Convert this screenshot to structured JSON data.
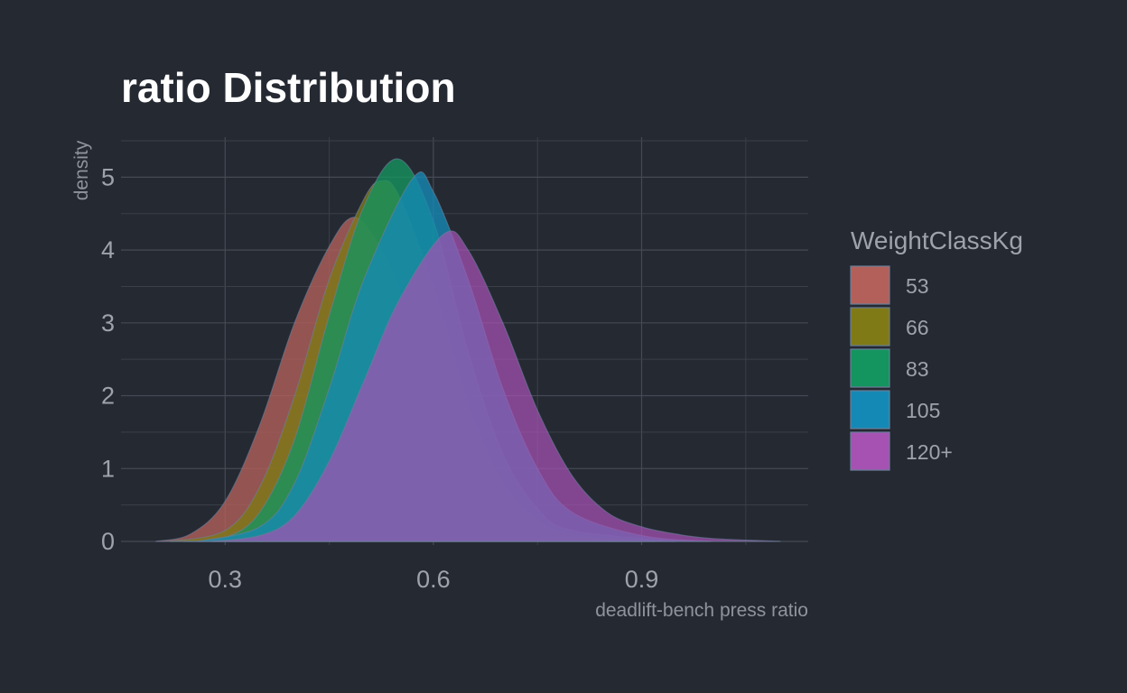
{
  "chart_data": {
    "type": "area",
    "title": "ratio Distribution",
    "xlabel": "deadlift-bench press ratio",
    "ylabel": "density",
    "xlim": [
      0.15,
      1.14
    ],
    "ylim": [
      -0.05,
      5.55
    ],
    "x_ticks": [
      0.3,
      0.6,
      0.9
    ],
    "x_tick_labels": [
      "0.3",
      "0.6",
      "0.9"
    ],
    "y_ticks": [
      0,
      1,
      2,
      3,
      4,
      5
    ],
    "y_tick_labels": [
      "0",
      "1",
      "2",
      "3",
      "4",
      "5"
    ],
    "grid": true,
    "legend_placement": "right",
    "legend_title": "WeightClassKg",
    "series": [
      {
        "name": "53",
        "color": "#b4605a",
        "peak_x": 0.485,
        "peak_density": 4.45,
        "x_min": 0.2,
        "x_max": 0.9,
        "x": [
          0.2,
          0.25,
          0.3,
          0.35,
          0.4,
          0.45,
          0.485,
          0.52,
          0.55,
          0.6,
          0.65,
          0.7,
          0.75,
          0.8,
          0.9
        ],
        "y": [
          0.0,
          0.1,
          0.55,
          1.6,
          3.0,
          4.05,
          4.45,
          4.1,
          3.5,
          2.2,
          1.1,
          0.45,
          0.15,
          0.05,
          0.0
        ]
      },
      {
        "name": "66",
        "color": "#7f7a15",
        "peak_x": 0.525,
        "peak_density": 4.95,
        "x_min": 0.22,
        "x_max": 0.92,
        "x": [
          0.22,
          0.3,
          0.35,
          0.4,
          0.45,
          0.5,
          0.525,
          0.55,
          0.6,
          0.65,
          0.7,
          0.75,
          0.8,
          0.92
        ],
        "y": [
          0.0,
          0.15,
          0.75,
          2.0,
          3.6,
          4.7,
          4.95,
          4.75,
          3.5,
          1.9,
          0.8,
          0.3,
          0.1,
          0.0
        ]
      },
      {
        "name": "83",
        "color": "#14945f",
        "peak_x": 0.55,
        "peak_density": 5.25,
        "x_min": 0.24,
        "x_max": 0.95,
        "x": [
          0.24,
          0.3,
          0.35,
          0.4,
          0.45,
          0.5,
          0.55,
          0.6,
          0.65,
          0.7,
          0.75,
          0.8,
          0.95
        ],
        "y": [
          0.0,
          0.05,
          0.4,
          1.4,
          3.1,
          4.6,
          5.25,
          4.4,
          2.6,
          1.2,
          0.45,
          0.15,
          0.0
        ]
      },
      {
        "name": "105",
        "color": "#1589b5",
        "peak_x": 0.57,
        "peak_density": 4.98,
        "x_min": 0.26,
        "x_max": 1.0,
        "x": [
          0.26,
          0.35,
          0.4,
          0.45,
          0.5,
          0.57,
          0.6,
          0.65,
          0.7,
          0.75,
          0.8,
          0.9,
          1.0
        ],
        "y": [
          0.0,
          0.2,
          0.8,
          2.1,
          3.6,
          4.98,
          4.8,
          3.6,
          2.1,
          1.0,
          0.4,
          0.08,
          0.0
        ]
      },
      {
        "name": "120+",
        "color": "#a552b3",
        "peak_x": 0.615,
        "peak_density": 4.22,
        "x_min": 0.28,
        "x_max": 1.1,
        "x": [
          0.28,
          0.35,
          0.4,
          0.45,
          0.5,
          0.55,
          0.615,
          0.65,
          0.7,
          0.75,
          0.8,
          0.85,
          0.9,
          0.95,
          1.0,
          1.1
        ],
        "y": [
          0.0,
          0.08,
          0.35,
          1.1,
          2.2,
          3.3,
          4.22,
          4.0,
          3.0,
          1.8,
          0.9,
          0.4,
          0.2,
          0.1,
          0.04,
          0.0
        ]
      }
    ]
  }
}
